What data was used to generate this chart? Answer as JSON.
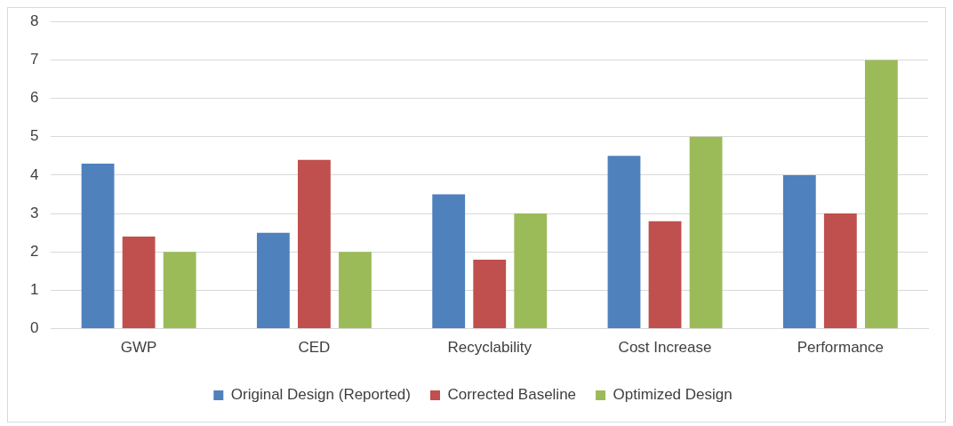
{
  "chart_data": {
    "type": "bar",
    "categories": [
      "GWP",
      "CED",
      "Recyclability",
      "Cost Increase",
      "Performance"
    ],
    "series": [
      {
        "name": "Original Design (Reported)",
        "color": "#4f81bd",
        "values": [
          4.3,
          2.5,
          3.5,
          4.5,
          4.0
        ]
      },
      {
        "name": "Corrected Baseline",
        "color": "#c0504d",
        "values": [
          2.4,
          4.4,
          1.8,
          2.8,
          3.0
        ]
      },
      {
        "name": "Optimized Design",
        "color": "#9bbb59",
        "values": [
          2.0,
          2.0,
          3.0,
          5.0,
          7.0
        ]
      }
    ],
    "ylim": [
      0,
      8
    ],
    "yticks": [
      0,
      1,
      2,
      3,
      4,
      5,
      6,
      7,
      8
    ],
    "grid": "y",
    "legend": "bottom"
  }
}
